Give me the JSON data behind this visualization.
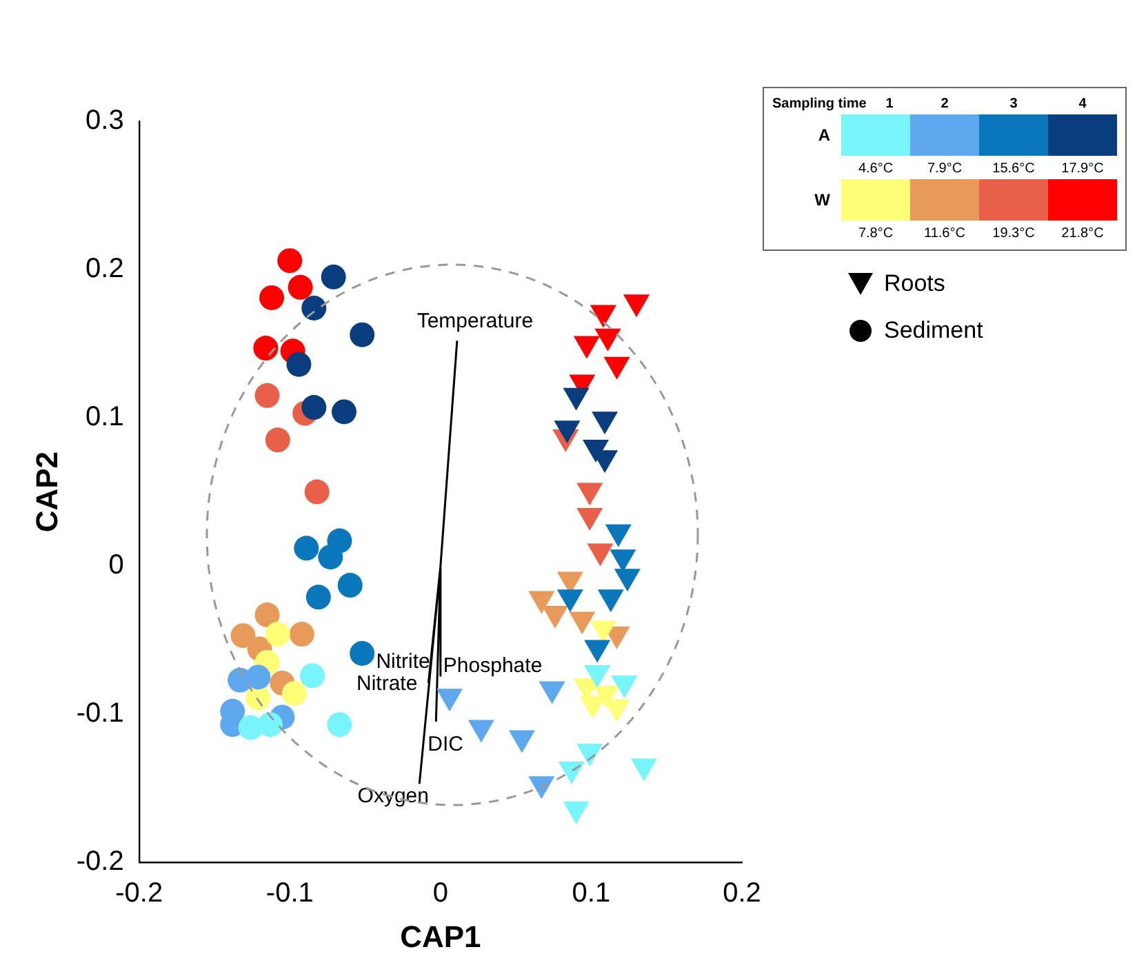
{
  "chart_data": {
    "type": "scatter",
    "xlabel": "CAP1",
    "ylabel": "CAP2",
    "xlim": [
      -0.2,
      0.2
    ],
    "xticks": [
      -0.2,
      -0.1,
      0,
      0.1,
      0.2
    ],
    "ylim": [
      -0.2,
      0.3
    ],
    "yticks": [
      -0.2,
      -0.1,
      0,
      0.1,
      0.2,
      0.3
    ],
    "grid": false,
    "legend_title": "Sampling time",
    "annotations": [
      "1",
      "2",
      "3",
      "4",
      "A",
      "4.6°C",
      "7.9°C",
      "15.6°C",
      "17.9°C",
      "W",
      "7.8°C",
      "11.6°C",
      "19.3°C",
      "21.8°C",
      "Roots",
      "Sediment",
      {
        "text": "Temperature",
        "x": 0.011,
        "y": 0.152
      },
      {
        "text": "Nitrite",
        "x": -0.006,
        "y": -0.061
      },
      {
        "text": "Nitrate",
        "x": -0.008,
        "y": -0.079
      },
      {
        "text": "Phosphate",
        "x": 0,
        "y": -0.074
      },
      {
        "text": "DIC",
        "x": -0.003,
        "y": -0.105
      },
      {
        "text": "Oxygen",
        "x": -0.014,
        "y": -0.147
      }
    ],
    "series": [
      {
        "type": "scatter",
        "marker": "circle",
        "color": "#77f5fa",
        "x": [
          -0.085,
          -0.126,
          -0.067,
          -0.113
        ],
        "values": [
          -0.074,
          -0.109,
          -0.107,
          -0.107
        ]
      },
      {
        "type": "scatter",
        "marker": "circle",
        "color": "#5ea8ee",
        "x": [
          -0.133,
          -0.121,
          -0.138,
          -0.138,
          -0.105
        ],
        "values": [
          -0.077,
          -0.075,
          -0.098,
          -0.107,
          -0.102
        ]
      },
      {
        "type": "scatter",
        "marker": "circle",
        "color": "#0a77bb",
        "x": [
          -0.089,
          -0.067,
          -0.073,
          -0.06,
          -0.081,
          -0.052
        ],
        "values": [
          0.012,
          0.017,
          0.006,
          -0.013,
          -0.021,
          -0.059
        ]
      },
      {
        "type": "scatter",
        "marker": "circle",
        "color": "#0a3d7d",
        "x": [
          -0.071,
          -0.084,
          -0.052,
          -0.094,
          -0.084,
          -0.064
        ],
        "values": [
          0.195,
          0.174,
          0.156,
          0.136,
          0.107,
          0.104
        ]
      },
      {
        "type": "scatter",
        "marker": "circle",
        "color": "#ffff77",
        "x": [
          -0.108,
          -0.115,
          -0.121,
          -0.097
        ],
        "values": [
          -0.046,
          -0.065,
          -0.089,
          -0.086
        ]
      },
      {
        "type": "scatter",
        "marker": "circle",
        "color": "#e89a5a",
        "x": [
          -0.115,
          -0.131,
          -0.12,
          -0.092,
          -0.105
        ],
        "values": [
          -0.033,
          -0.047,
          -0.056,
          -0.046,
          -0.079
        ]
      },
      {
        "type": "scatter",
        "marker": "circle",
        "color": "#e8604a",
        "x": [
          -0.115,
          -0.09,
          -0.108,
          -0.082
        ],
        "values": [
          0.115,
          0.103,
          0.085,
          0.05
        ]
      },
      {
        "type": "scatter",
        "marker": "circle",
        "color": "#ff0000",
        "x": [
          -0.1,
          -0.093,
          -0.112,
          -0.116,
          -0.098
        ],
        "values": [
          0.206,
          0.188,
          0.181,
          0.147,
          0.145
        ]
      },
      {
        "type": "scatter",
        "marker": "triangle",
        "color": "#77f5fa",
        "x": [
          0.104,
          0.122,
          0.099,
          0.087,
          0.135,
          0.09
        ],
        "values": [
          -0.072,
          -0.079,
          -0.125,
          -0.137,
          -0.135,
          -0.164
        ]
      },
      {
        "type": "scatter",
        "marker": "triangle",
        "color": "#5ea8ee",
        "x": [
          0.006,
          0.027,
          0.054,
          0.074,
          0.067
        ],
        "values": [
          -0.088,
          -0.109,
          -0.116,
          -0.083,
          -0.147
        ]
      },
      {
        "type": "scatter",
        "marker": "triangle",
        "color": "#0a77bb",
        "x": [
          0.118,
          0.121,
          0.124,
          0.086,
          0.113,
          0.104
        ],
        "values": [
          0.023,
          0.006,
          -0.007,
          -0.021,
          -0.021,
          -0.055
        ]
      },
      {
        "type": "scatter",
        "marker": "triangle",
        "color": "#0a3d7d",
        "x": [
          0.09,
          0.109,
          0.084,
          0.103,
          0.109
        ],
        "values": [
          0.115,
          0.099,
          0.093,
          0.08,
          0.073
        ]
      },
      {
        "type": "scatter",
        "marker": "triangle",
        "color": "#ffff77",
        "x": [
          0.108,
          0.097,
          0.101,
          0.117,
          0.11
        ],
        "values": [
          -0.042,
          -0.081,
          -0.093,
          -0.095,
          -0.086
        ]
      },
      {
        "type": "scatter",
        "marker": "triangle",
        "color": "#e89a5a",
        "x": [
          0.086,
          0.067,
          0.094,
          0.117,
          0.076
        ],
        "values": [
          -0.009,
          -0.022,
          -0.036,
          -0.046,
          -0.032
        ]
      },
      {
        "type": "scatter",
        "marker": "triangle",
        "color": "#e8604a",
        "x": [
          0.083,
          0.099,
          0.099,
          0.106
        ],
        "values": [
          0.087,
          0.051,
          0.034,
          0.01
        ]
      },
      {
        "type": "scatter",
        "marker": "triangle",
        "color": "#ff0000",
        "x": [
          0.13,
          0.108,
          0.111,
          0.097,
          0.117,
          0.094
        ],
        "values": [
          0.178,
          0.171,
          0.155,
          0.15,
          0.136,
          0.124
        ]
      },
      {
        "type": "line",
        "marker": "none",
        "color": "#000000",
        "x": [
          0,
          0.011,
          null,
          0,
          -0.006,
          null,
          0,
          -0.008,
          null,
          0,
          0,
          null,
          0,
          -0.003,
          null,
          0,
          -0.014
        ],
        "values": [
          0,
          0.152,
          null,
          0,
          -0.061,
          null,
          0,
          -0.079,
          null,
          0,
          -0.074,
          null,
          0,
          -0.105,
          null,
          0,
          -0.147
        ]
      }
    ]
  }
}
